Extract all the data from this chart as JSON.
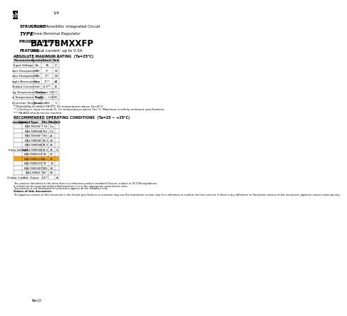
{
  "bg_color": "#ffffff",
  "logo_text": "rohm",
  "page_num": "1/4",
  "structure_label": "STRUCTURE",
  "structure_val": "Silicon Monolithic Integrated Circuit",
  "type_label": "TYPE",
  "type_val": "Three-Terminal Regulator",
  "product_label": "PRODUCT SERIES",
  "product_val": "BA178MXXFP",
  "feature_label": "FEATURE",
  "feature_val": "Output current: up to 0.5A",
  "abs_title": "ABSOLUTE MAXIMUM RATING  (Ta=25°C)",
  "abs_headers": [
    "Parameter",
    "Symbol",
    "Limit",
    "Unit"
  ],
  "abs_rows": [
    [
      "Input Voltage",
      "Vin",
      "35",
      "V"
    ],
    [
      "Power Dissipation 1",
      "Pd1",
      "1*",
      "W"
    ],
    [
      "Power Dissipation 2",
      "Pd2",
      "1**",
      "W"
    ],
    [
      "Ripple Attenuation",
      "Ripp",
      "1***",
      "dB"
    ],
    [
      "Output Current",
      "Iout",
      "-0.5**",
      "A"
    ],
    [
      "Operating Temperature Range",
      "Topr",
      "above 125",
      "°C"
    ],
    [
      "Storage Temperature Range",
      "Tstg",
      "-55 ~ +150",
      "°C"
    ],
    [
      "Thermal Junction Temperature",
      "Tjmax",
      "150",
      "°C"
    ]
  ],
  "abs_notes": [
    "* Depending on above 54.4°C, for temperatures above Ta=25°C.",
    "** Limiting or input terminal IC, for temperatures above Ta=°C, Maximum is infinity minimum specifications.",
    "*** PA.ADO should not be reached."
  ],
  "rec_title": "RECOMMENDED OPERATING CONDITIONS  (Ta=25 ~ +25°C)",
  "rec_headers": [
    "Parameter",
    "Symbol",
    "Type",
    "Min",
    "Max",
    "Unit"
  ],
  "rec_rows": [
    [
      "",
      "",
      "BA178V05F *",
      "7.0",
      "2.x",
      ""
    ],
    [
      "",
      "",
      "BA178M06A *",
      "8.5",
      "0.1",
      ""
    ],
    [
      "",
      "",
      "BA178V06F *",
      "8.5",
      "p1",
      ""
    ],
    [
      "",
      "",
      "BA178M08F *",
      "10.5",
      "30",
      ""
    ],
    [
      "",
      "",
      "BA178M09A *",
      "11.5",
      "36",
      ""
    ],
    [
      "Input Voltage",
      "Vin",
      "BA178M09A *",
      "12.5",
      "36",
      "V"
    ],
    [
      "",
      "",
      "BA178M010F *",
      "15",
      "27",
      ""
    ],
    [
      "",
      "",
      "BA178M012F *",
      "14.+",
      "30",
      ""
    ],
    [
      "",
      "",
      "BA178M015F *",
      "17",
      "15",
      ""
    ],
    [
      "",
      "",
      "BA178M18FP *",
      "120",
      "28",
      ""
    ],
    [
      "",
      "",
      "BA178M4T *",
      "65*",
      "30",
      ""
    ],
    [
      "Output Current",
      "0",
      "Output",
      "0.5**",
      "",
      "A"
    ]
  ],
  "highlight_row": 7,
  "highlight_color": "#FFA500",
  "footer_notes": [
    "This product described in this data sheet is a reference product standard Devices, subject to DCCON regulations.",
    "It should not be exported without Authorization it is in the appropriate government more.",
    "This product is not developed for protection against all the reliability man."
  ],
  "status_note": "Status of this document:",
  "japanese_note": "The Japanese version of this document is the formal specification, a customer may use the translation version only for a reference to confirm the form version. If there is any difference in Translation version of this document, Japanese version takes priority.",
  "rev": "Rev.D"
}
